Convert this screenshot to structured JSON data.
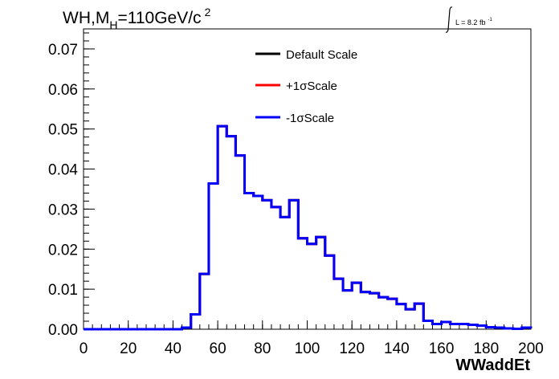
{
  "chart_data": {
    "type": "line",
    "title": {
      "main": "WH,M",
      "sub": "H",
      "rest": "=110GeV/c",
      "sup": "2"
    },
    "lumi": {
      "text": "L = 8.2 fb",
      "sup": "-1"
    },
    "xlabel": "WWaddEt",
    "ylabel": "",
    "xlim": [
      0,
      200
    ],
    "ylim": [
      0,
      0.075
    ],
    "x_ticks": [
      "0",
      "20",
      "40",
      "60",
      "80",
      "100",
      "120",
      "140",
      "160",
      "180",
      "200"
    ],
    "y_ticks": [
      "0.00",
      "0.01",
      "0.02",
      "0.03",
      "0.04",
      "0.05",
      "0.06",
      "0.07"
    ],
    "bin_width": 4,
    "bin_edges_start": 0,
    "grid": false,
    "legend_position": "top-center",
    "series": [
      {
        "name": "Default Scale",
        "color": "#000000",
        "values": [
          0,
          0,
          0,
          0,
          0,
          0,
          0,
          0,
          0,
          0,
          0,
          0.0004,
          0.0037,
          0.0138,
          0.0364,
          0.0507,
          0.0482,
          0.0434,
          0.034,
          0.0333,
          0.0322,
          0.0305,
          0.028,
          0.0322,
          0.0227,
          0.0213,
          0.023,
          0.0184,
          0.0126,
          0.0097,
          0.0116,
          0.0093,
          0.009,
          0.008,
          0.0076,
          0.0063,
          0.005,
          0.0064,
          0.0021,
          0.0013,
          0.0018,
          0.0013,
          0.0013,
          0.0011,
          0.0009,
          0.0005,
          0.0004,
          0.0002,
          0.0001,
          0.0004,
          0.0002
        ]
      },
      {
        "name": "+1σScale",
        "color": "#ff0000",
        "values": [
          0,
          0,
          0,
          0,
          0,
          0,
          0,
          0,
          0,
          0,
          0,
          0.0004,
          0.0037,
          0.0138,
          0.0364,
          0.0507,
          0.0482,
          0.0434,
          0.034,
          0.0333,
          0.0322,
          0.0305,
          0.028,
          0.0322,
          0.0227,
          0.0213,
          0.023,
          0.0184,
          0.0126,
          0.0097,
          0.0116,
          0.0093,
          0.009,
          0.008,
          0.0076,
          0.0063,
          0.005,
          0.0064,
          0.0021,
          0.0013,
          0.0018,
          0.0013,
          0.0013,
          0.0011,
          0.0009,
          0.0005,
          0.0004,
          0.0002,
          0.0001,
          0.0004,
          0.0002
        ]
      },
      {
        "name": "-1σScale",
        "color": "#0000ff",
        "values": [
          0,
          0,
          0,
          0,
          0,
          0,
          0,
          0,
          0,
          0,
          0,
          0.0004,
          0.0037,
          0.0138,
          0.0364,
          0.0507,
          0.0482,
          0.0434,
          0.034,
          0.0333,
          0.0322,
          0.0305,
          0.028,
          0.0322,
          0.0227,
          0.0213,
          0.023,
          0.0184,
          0.0126,
          0.0097,
          0.0116,
          0.0093,
          0.009,
          0.008,
          0.0076,
          0.0063,
          0.005,
          0.0064,
          0.0021,
          0.0013,
          0.0018,
          0.0013,
          0.0013,
          0.0011,
          0.0009,
          0.0005,
          0.0004,
          0.0002,
          0.0001,
          0.0004,
          0.0002
        ]
      }
    ]
  }
}
